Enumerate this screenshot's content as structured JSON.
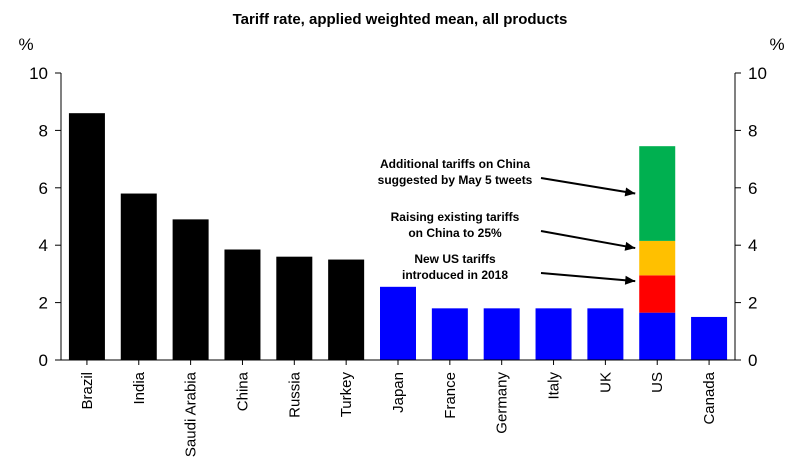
{
  "chart_data": {
    "type": "bar",
    "title": "Tariff rate, applied weighted mean, all products",
    "ylabel_left": "%",
    "ylabel_right": "%",
    "ylim": [
      0,
      10
    ],
    "yticks": [
      "0",
      "2",
      "4",
      "6",
      "8",
      "10"
    ],
    "grid": false,
    "categories": [
      "Brazil",
      "India",
      "Saudi Arabia",
      "China",
      "Russia",
      "Turkey",
      "Japan",
      "France",
      "Germany",
      "Italy",
      "UK",
      "US",
      "Canada"
    ],
    "series": [
      {
        "color": "#000000",
        "values": [
          8.6,
          5.8,
          4.9,
          3.85,
          3.6,
          3.5,
          0,
          0,
          0,
          0,
          0,
          0,
          0
        ]
      },
      {
        "color": "#0000ff",
        "values": [
          0,
          0,
          0,
          0,
          0,
          0,
          2.55,
          1.8,
          1.8,
          1.8,
          1.8,
          1.65,
          1.5
        ]
      },
      {
        "color": "#ff0000",
        "values": [
          0,
          0,
          0,
          0,
          0,
          0,
          0,
          0,
          0,
          0,
          0,
          1.3,
          0
        ]
      },
      {
        "color": "#ffc000",
        "values": [
          0,
          0,
          0,
          0,
          0,
          0,
          0,
          0,
          0,
          0,
          0,
          1.2,
          0
        ]
      },
      {
        "color": "#00b050",
        "values": [
          0,
          0,
          0,
          0,
          0,
          0,
          0,
          0,
          0,
          0,
          0,
          3.3,
          0
        ]
      }
    ],
    "annotations": [
      {
        "lines": [
          "Additional tariffs on China",
          "suggested by May 5 tweets"
        ],
        "category": "US",
        "y": 5.8
      },
      {
        "lines": [
          "Raising existing tariffs",
          "on China to 25%"
        ],
        "category": "US",
        "y": 3.9
      },
      {
        "lines": [
          "New US tariffs",
          "introduced in 2018"
        ],
        "category": "US",
        "y": 2.75
      }
    ]
  }
}
